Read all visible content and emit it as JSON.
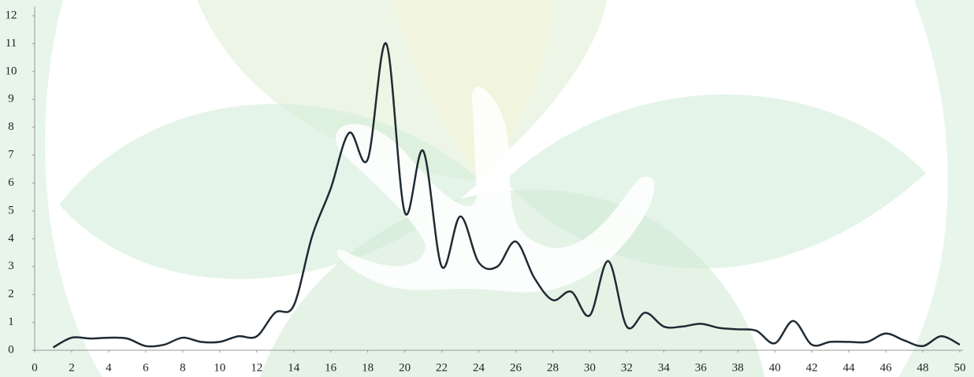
{
  "chart_data": {
    "type": "line",
    "x": [
      1,
      2,
      3,
      4,
      5,
      6,
      7,
      8,
      9,
      10,
      11,
      12,
      13,
      14,
      15,
      16,
      17,
      18,
      19,
      20,
      21,
      22,
      23,
      24,
      25,
      26,
      27,
      28,
      29,
      30,
      31,
      32,
      33,
      34,
      35,
      36,
      37,
      38,
      39,
      40,
      41,
      42,
      43,
      44,
      45,
      46,
      47,
      48,
      49,
      50
    ],
    "series": [
      {
        "color": "#1f2a33",
        "values": [
          0.1,
          0.45,
          0.42,
          0.45,
          0.42,
          0.15,
          0.2,
          0.45,
          0.3,
          0.3,
          0.5,
          0.5,
          1.35,
          1.6,
          4.1,
          5.8,
          7.8,
          6.85,
          11.0,
          4.95,
          7.15,
          3.0,
          4.8,
          3.15,
          3.0,
          3.9,
          2.6,
          1.8,
          2.1,
          1.25,
          3.2,
          0.85,
          1.35,
          0.85,
          0.85,
          0.95,
          0.8,
          0.75,
          0.7,
          0.25,
          1.05,
          0.2,
          0.3,
          0.3,
          0.3,
          0.6,
          0.35,
          0.15,
          0.5,
          0.2
        ]
      }
    ],
    "xlim": [
      0,
      50
    ],
    "xticks": [
      0,
      2,
      4,
      6,
      8,
      10,
      12,
      14,
      16,
      18,
      20,
      22,
      24,
      26,
      28,
      30,
      32,
      34,
      36,
      38,
      40,
      42,
      44,
      46,
      48,
      50
    ],
    "ylim": [
      0,
      12
    ],
    "yticks": [
      0,
      1,
      2,
      3,
      4,
      5,
      6,
      7,
      8,
      9,
      10,
      11,
      12
    ],
    "grid": false,
    "smooth": true
  }
}
